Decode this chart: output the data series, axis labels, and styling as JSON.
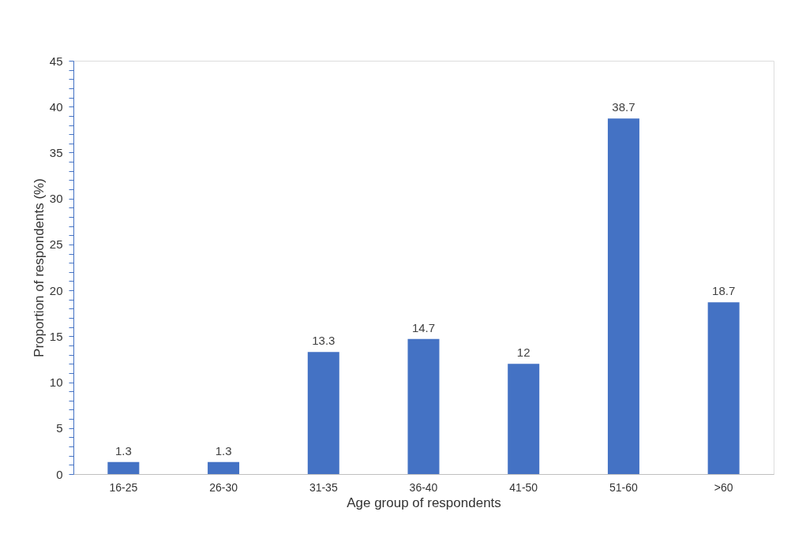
{
  "chart_data": {
    "type": "bar",
    "xlabel": "Age group of respondents",
    "ylabel": "Proportion of respondents (%)",
    "categories": [
      "16-25",
      "26-30",
      "31-35",
      "36-40",
      "41-50",
      "51-60",
      ">60"
    ],
    "values": [
      1.3,
      1.3,
      13.3,
      14.7,
      12,
      38.7,
      18.7
    ],
    "color": "#4472c4",
    "ylim": [
      0,
      45
    ],
    "yticks": [
      0,
      {
        "value": 1,
        "label": null
      },
      {
        "value": 2,
        "label": null
      },
      {
        "value": 3,
        "label": null
      },
      {
        "value": 4,
        "label": null
      },
      5,
      {
        "value": 6,
        "label": null
      },
      {
        "value": 7,
        "label": null
      },
      {
        "value": 8,
        "label": null
      },
      {
        "value": 9,
        "label": null
      },
      10,
      {
        "value": 11,
        "label": null
      },
      {
        "value": 12,
        "label": null
      },
      {
        "value": 13,
        "label": null
      },
      {
        "value": 14,
        "label": null
      },
      15,
      {
        "value": 16,
        "label": null
      },
      {
        "value": 17,
        "label": null
      },
      {
        "value": 18,
        "label": null
      },
      {
        "value": 19,
        "label": null
      },
      20,
      {
        "value": 21,
        "label": null
      },
      {
        "value": 22,
        "label": null
      },
      {
        "value": 23,
        "label": null
      },
      {
        "value": 24,
        "label": null
      },
      25,
      {
        "value": 26,
        "label": null
      },
      {
        "value": 27,
        "label": null
      },
      {
        "value": 28,
        "label": null
      },
      {
        "value": 29,
        "label": null
      },
      30,
      {
        "value": 31,
        "label": null
      },
      {
        "value": 32,
        "label": null
      },
      {
        "value": 33,
        "label": null
      },
      {
        "value": 34,
        "label": null
      },
      35,
      {
        "value": 36,
        "label": null
      },
      {
        "value": 37,
        "label": null
      },
      {
        "value": 38,
        "label": null
      },
      {
        "value": 39,
        "label": null
      },
      40,
      {
        "value": 41,
        "label": null
      },
      {
        "value": 42,
        "label": null
      },
      {
        "value": 43,
        "label": null
      },
      {
        "value": 44,
        "label": null
      },
      45
    ],
    "grid": false,
    "data_labels": true
  }
}
